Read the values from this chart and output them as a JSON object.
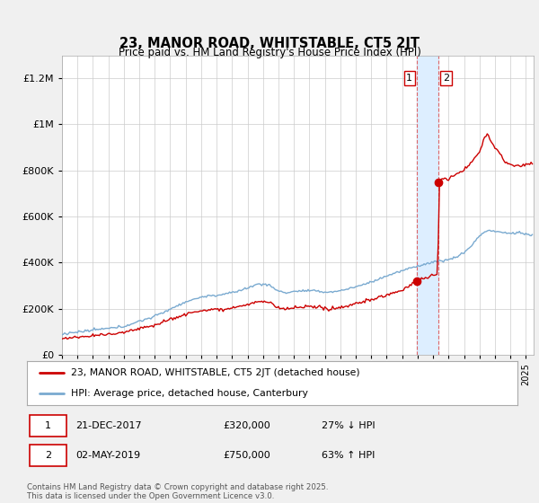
{
  "title": "23, MANOR ROAD, WHITSTABLE, CT5 2JT",
  "subtitle": "Price paid vs. HM Land Registry's House Price Index (HPI)",
  "ytick_values": [
    0,
    200000,
    400000,
    600000,
    800000,
    1000000,
    1200000
  ],
  "ylim": [
    0,
    1300000
  ],
  "xlim_start": 1995.0,
  "xlim_end": 2025.5,
  "hpi_color": "#7aaad0",
  "price_color": "#cc0000",
  "vline_color": "#dd4444",
  "band_color": "#ddeeff",
  "transaction1_x": 2017.97,
  "transaction1_y": 320000,
  "transaction2_x": 2019.33,
  "transaction2_y": 750000,
  "legend_label1": "23, MANOR ROAD, WHITSTABLE, CT5 2JT (detached house)",
  "legend_label2": "HPI: Average price, detached house, Canterbury",
  "note1_date": "21-DEC-2017",
  "note1_price": "£320,000",
  "note1_hpi": "27% ↓ HPI",
  "note2_date": "02-MAY-2019",
  "note2_price": "£750,000",
  "note2_hpi": "63% ↑ HPI",
  "footnote": "Contains HM Land Registry data © Crown copyright and database right 2025.\nThis data is licensed under the Open Government Licence v3.0.",
  "background_color": "#f0f0f0",
  "plot_background": "#ffffff",
  "grid_color": "#cccccc"
}
